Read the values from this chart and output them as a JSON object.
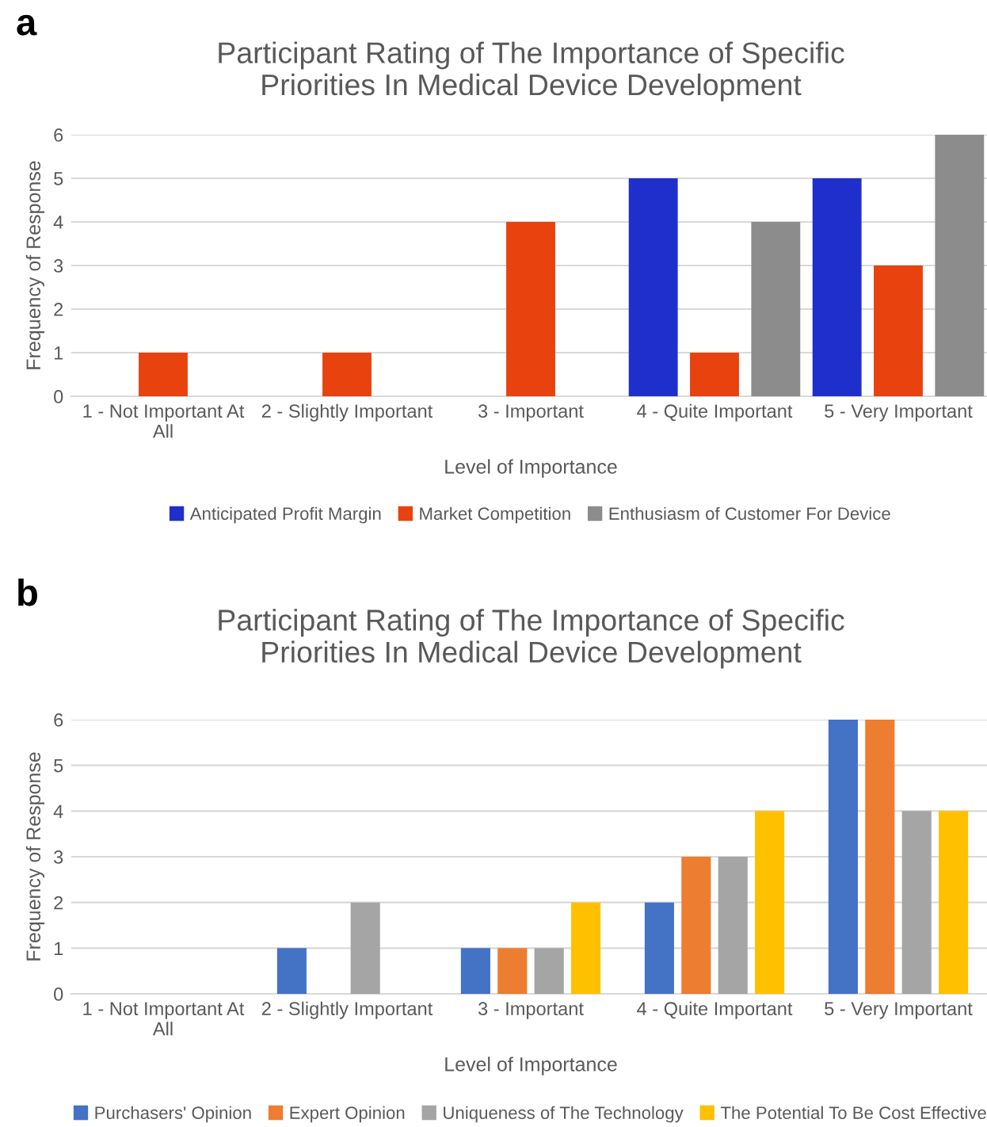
{
  "chart_data": [
    {
      "type": "bar",
      "title": "Participant Rating of The Importance of Specific\nPriorities In Medical Device Development",
      "xlabel": "Level of Importance",
      "ylabel": "Frequency of Response",
      "categories": [
        "1 - Not Important At\nAll",
        "2 - Slightly Important",
        "3 - Important",
        "4 - Quite Important",
        "5 - Very Important"
      ],
      "series": [
        {
          "name": "Anticipated Profit Margin",
          "color": "#1f2fcc",
          "values": [
            0,
            0,
            0,
            5,
            5
          ]
        },
        {
          "name": "Market Competition",
          "color": "#e8420f",
          "values": [
            1,
            1,
            4,
            1,
            3
          ]
        },
        {
          "name": "Enthusiasm of Customer For Device",
          "color": "#8c8c8c",
          "values": [
            0,
            0,
            0,
            4,
            6
          ]
        }
      ],
      "ylim": [
        0,
        6
      ],
      "yticks": [
        0,
        1,
        2,
        3,
        4,
        5,
        6
      ],
      "grid": "y",
      "legend": "bottom",
      "annotations": [
        "a"
      ]
    },
    {
      "type": "bar",
      "title": "Participant Rating of The Importance of Specific\nPriorities In Medical Device Development",
      "xlabel": "Level of Importance",
      "ylabel": "Frequency of Response",
      "categories": [
        "1 - Not Important At\nAll",
        "2 - Slightly Important",
        "3 - Important",
        "4 - Quite Important",
        "5 - Very Important"
      ],
      "series": [
        {
          "name": "Purchasers' Opinion",
          "color": "#4472c4",
          "values": [
            0,
            1,
            1,
            2,
            6
          ]
        },
        {
          "name": "Expert Opinion",
          "color": "#ed7d31",
          "values": [
            0,
            0,
            1,
            3,
            6
          ]
        },
        {
          "name": "Uniqueness of The Technology",
          "color": "#a5a5a5",
          "values": [
            0,
            2,
            1,
            3,
            4
          ]
        },
        {
          "name": "The Potential To Be Cost Effective",
          "color": "#ffc000",
          "values": [
            0,
            0,
            2,
            4,
            4
          ]
        }
      ],
      "ylim": [
        0,
        6
      ],
      "yticks": [
        0,
        1,
        2,
        3,
        4,
        5,
        6
      ],
      "grid": "y",
      "legend": "bottom",
      "annotations": [
        "b"
      ]
    }
  ]
}
